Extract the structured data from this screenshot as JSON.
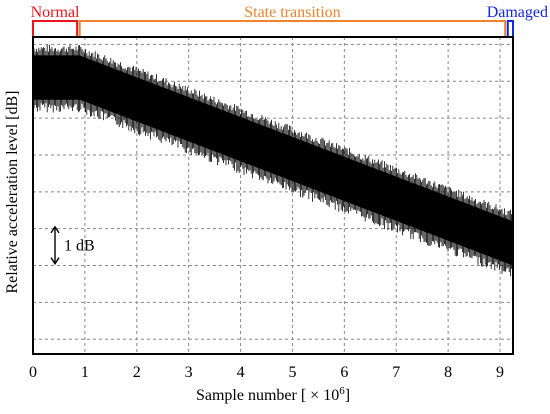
{
  "chart_data": {
    "type": "area",
    "xlabel": "Sample number [ × 10",
    "xlabel_exponent": "6",
    "xlabel_suffix": "]",
    "ylabel": "Relative acceleration level [dB]",
    "xlim": [
      0,
      9.25
    ],
    "ylim_db": [
      -7.4,
      1.2
    ],
    "x_ticks": [
      "0",
      "1",
      "2",
      "3",
      "4",
      "5",
      "6",
      "7",
      "8",
      "9"
    ],
    "grid": true,
    "scale_bar": {
      "label": "1 dB",
      "value_db": 1
    },
    "envelope": {
      "x": [
        0,
        0.9,
        9.25
      ],
      "upper_db": [
        0.7,
        0.7,
        -3.8
      ],
      "lower_db": [
        -0.5,
        -0.5,
        -5.0
      ]
    },
    "phases": [
      {
        "label": "Normal",
        "x_start": 0,
        "x_end": 0.85,
        "color": "#e8141e"
      },
      {
        "label": "State transition",
        "x_start": 0.9,
        "x_end": 9.1,
        "color": "#f0822a"
      },
      {
        "label": "Damaged",
        "x_start": 9.15,
        "x_end": 9.25,
        "color": "#1428e0"
      }
    ]
  }
}
